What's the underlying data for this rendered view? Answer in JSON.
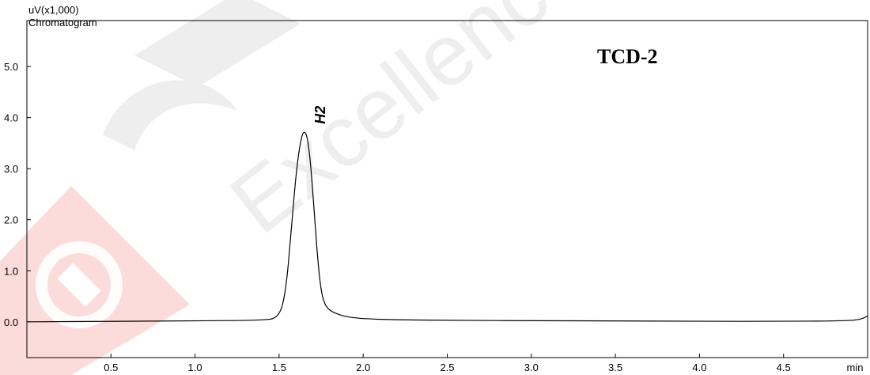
{
  "header": {
    "y_unit": "uV(x1,000)",
    "chart_name": "Chromatogram",
    "panel_title": "TCD-2"
  },
  "watermark": {
    "text": "Excellence",
    "logo_color": "#e53935"
  },
  "chart_data": {
    "type": "line",
    "title": "TCD-2",
    "ylabel": "uV(x1,000)",
    "xlabel": "min",
    "xlim": [
      0.0,
      5.0
    ],
    "ylim": [
      -0.7,
      5.9
    ],
    "x_ticks": [
      0.5,
      1.0,
      1.5,
      2.0,
      2.5,
      3.0,
      3.5,
      4.0,
      4.5
    ],
    "x_tick_labels": [
      "0.5",
      "1.0",
      "1.5",
      "2.0",
      "2.5",
      "3.0",
      "3.5",
      "4.0",
      "4.5"
    ],
    "x_unit_label": "min",
    "y_ticks": [
      0.0,
      1.0,
      2.0,
      3.0,
      4.0,
      5.0
    ],
    "y_tick_labels": [
      "0.0",
      "1.0",
      "2.0",
      "3.0",
      "4.0",
      "5.0"
    ],
    "grid": false,
    "series": [
      {
        "color": "#000000",
        "x": [
          0.0,
          0.5,
          1.0,
          1.4,
          1.5,
          1.54,
          1.57,
          1.6,
          1.63,
          1.65,
          1.67,
          1.69,
          1.71,
          1.73,
          1.75,
          1.77,
          1.8,
          1.85,
          1.9,
          2.0,
          2.2,
          2.6,
          3.0,
          3.5,
          4.0,
          4.5,
          4.9,
          4.97,
          5.0
        ],
        "y": [
          0.0,
          0.01,
          0.02,
          0.03,
          0.08,
          0.6,
          1.7,
          2.9,
          3.6,
          3.75,
          3.6,
          3.0,
          2.1,
          1.2,
          0.6,
          0.35,
          0.22,
          0.15,
          0.1,
          0.06,
          0.04,
          0.03,
          0.02,
          0.02,
          0.01,
          0.01,
          0.02,
          0.06,
          0.12
        ]
      }
    ],
    "annotations": [
      {
        "text": "H2",
        "x": 1.67,
        "y": 3.75
      }
    ]
  }
}
